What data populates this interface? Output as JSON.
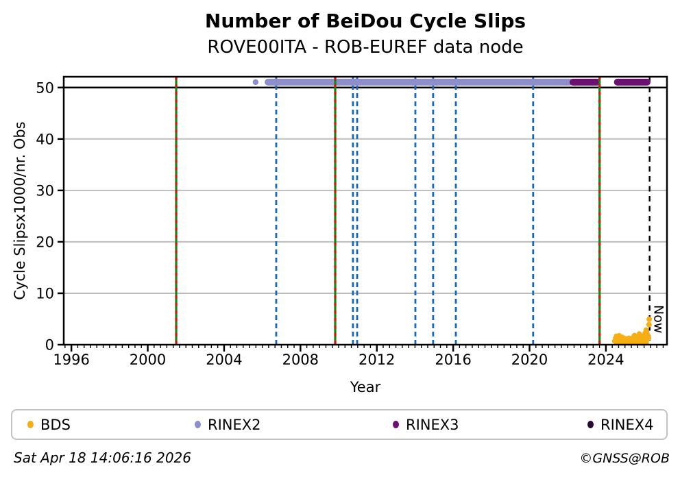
{
  "header": {
    "title": "Number of BeiDou Cycle Slips",
    "subtitle": "ROVE00ITA - ROB-EUREF data node"
  },
  "footer": {
    "timestamp": "Sat Apr 18 14:06:16 2026",
    "credit": "©GNSS@ROB"
  },
  "legend": {
    "items": [
      {
        "label": "BDS",
        "color": "#F6AE15"
      },
      {
        "label": "RINEX2",
        "color": "#8E8ECC"
      },
      {
        "label": "RINEX3",
        "color": "#6D0F72"
      },
      {
        "label": "RINEX4",
        "color": "#2A0934"
      }
    ]
  },
  "chart_data": {
    "type": "scatter",
    "title": "Number of BeiDou Cycle Slips",
    "subtitle": "ROVE00ITA - ROB-EUREF data node",
    "xlabel": "Year",
    "ylabel": "Cycle Slipsx1000/nr. Obs",
    "xlim": [
      1995.6,
      2027.2
    ],
    "ylim": [
      0,
      52.1
    ],
    "x_major_ticks": [
      1996,
      2000,
      2004,
      2008,
      2012,
      2016,
      2020,
      2024
    ],
    "x_minor_step": 0.33333,
    "y_ticks": [
      0,
      10,
      20,
      30,
      40,
      50
    ],
    "grid_y": [
      10,
      20,
      30,
      40
    ],
    "threshold_y": 50,
    "legend_position": "bottom",
    "grid": "horizontal-only",
    "series": [
      {
        "name": "RINEX2",
        "color": "#8E8ECC",
        "band_value": 51.05,
        "segments": [
          [
            2006.16,
            2022.24
          ]
        ],
        "points": [
          [
            2005.65,
            51.05
          ]
        ]
      },
      {
        "name": "RINEX3",
        "color": "#6D0F72",
        "band_value": 51.05,
        "segments": [
          [
            2022.13,
            2023.67
          ],
          [
            2024.46,
            2026.3
          ]
        ],
        "points": []
      },
      {
        "name": "RINEX4",
        "color": "#2A0934",
        "band_value": null,
        "segments": [],
        "points": []
      },
      {
        "name": "BDS",
        "color": "#F6AE15",
        "envelope": [
          [
            2024.45,
            0.7
          ],
          [
            2024.5,
            1.3
          ],
          [
            2024.55,
            1.7
          ],
          [
            2024.6,
            1.45
          ],
          [
            2024.65,
            1.65
          ],
          [
            2024.7,
            1.8
          ],
          [
            2024.75,
            1.3
          ],
          [
            2024.8,
            1.0
          ],
          [
            2024.85,
            1.5
          ],
          [
            2024.9,
            1.15
          ],
          [
            2024.95,
            1.3
          ],
          [
            2025.0,
            1.05
          ],
          [
            2025.05,
            1.2
          ],
          [
            2025.1,
            0.95
          ],
          [
            2025.15,
            1.15
          ],
          [
            2025.2,
            1.3
          ],
          [
            2025.25,
            1.0
          ],
          [
            2025.3,
            1.2
          ],
          [
            2025.35,
            0.95
          ],
          [
            2025.4,
            1.15
          ],
          [
            2025.45,
            1.6
          ],
          [
            2025.5,
            1.85
          ],
          [
            2025.55,
            1.5
          ],
          [
            2025.6,
            1.25
          ],
          [
            2025.65,
            1.45
          ],
          [
            2025.7,
            1.8
          ],
          [
            2025.75,
            2.15
          ],
          [
            2025.8,
            1.7
          ],
          [
            2025.85,
            1.45
          ],
          [
            2025.9,
            1.7
          ],
          [
            2025.95,
            1.5
          ],
          [
            2026.0,
            1.9
          ],
          [
            2026.05,
            2.3
          ],
          [
            2026.1,
            2.9
          ],
          [
            2026.15,
            2.45
          ],
          [
            2026.2,
            1.9
          ],
          [
            2026.25,
            1.3
          ]
        ],
        "outliers": [
          [
            2026.26,
            3.9
          ],
          [
            2026.27,
            4.95
          ]
        ]
      }
    ],
    "event_lines": {
      "green_red": [
        2001.49,
        2009.82,
        2023.67
      ],
      "blue_dashed": [
        2006.73,
        2010.75,
        2010.97,
        2014.02,
        2014.95,
        2016.14,
        2020.19
      ]
    },
    "now": {
      "x": 2026.29,
      "label": "Now"
    },
    "colors": {
      "green": "#108710",
      "red": "#E01212",
      "blue": "#1567B8",
      "grid": "#BDBDBD",
      "threshold": "#000000",
      "now_line": "#000000",
      "spine": "#000000"
    }
  }
}
